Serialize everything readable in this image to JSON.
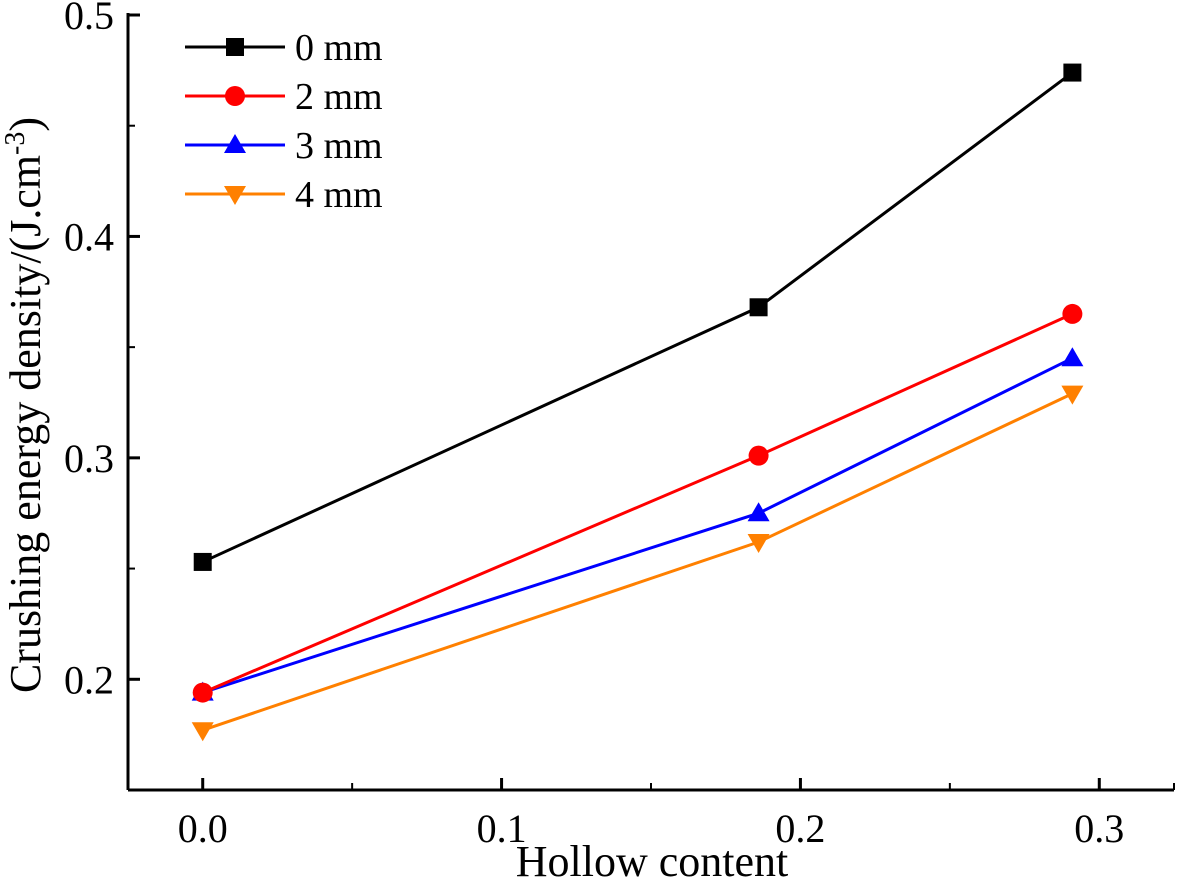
{
  "chart_data": {
    "type": "line",
    "title": "",
    "xlabel": "Hollow content",
    "ylabel_main": "Crushing energy density/(J.cm",
    "ylabel_sup": "-3",
    "ylabel_close": ")",
    "xlim": [
      -0.025,
      0.325
    ],
    "ylim": [
      0.15,
      0.5
    ],
    "xticks": [
      0.0,
      0.1,
      0.2,
      0.3
    ],
    "xtick_labels": [
      "0.0",
      "0.1",
      "0.2",
      "0.3"
    ],
    "yticks": [
      0.2,
      0.3,
      0.4,
      0.5
    ],
    "ytick_labels": [
      "0.2",
      "0.3",
      "0.4",
      "0.5"
    ],
    "grid": false,
    "legend_position": "top-left",
    "x": [
      0.0,
      0.186,
      0.291
    ],
    "series": [
      {
        "name": "0 mm",
        "color": "#000000",
        "marker": "square",
        "values": [
          0.253,
          0.368,
          0.474
        ]
      },
      {
        "name": "2 mm",
        "color": "#ff0000",
        "marker": "circle",
        "values": [
          0.194,
          0.301,
          0.365
        ]
      },
      {
        "name": "3 mm",
        "color": "#0000ff",
        "marker": "triangle-up",
        "values": [
          0.194,
          0.275,
          0.345
        ]
      },
      {
        "name": "4 mm",
        "color": "#ff8000",
        "marker": "triangle-down",
        "values": [
          0.177,
          0.262,
          0.329
        ]
      }
    ]
  }
}
